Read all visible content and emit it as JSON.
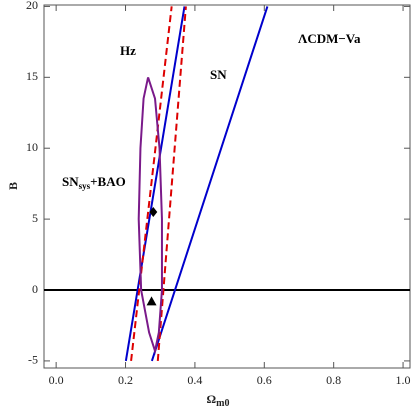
{
  "chart_data": {
    "type": "line",
    "xlabel": [
      "Ω",
      "m0"
    ],
    "ylabel": "B",
    "annotations": [
      {
        "text": "Hz"
      },
      {
        "text": "SN"
      },
      {
        "text": "ΛCDM−Va"
      },
      {
        "parts": [
          "SN",
          "sys",
          "+BAO"
        ]
      }
    ],
    "xlim": [
      -0.035,
      1.02
    ],
    "ylim": [
      -5.5,
      20.1
    ],
    "xticks": [
      {
        "value": 0,
        "label": "0.0"
      },
      {
        "value": 0.2,
        "label": "0.2"
      },
      {
        "value": 0.4,
        "label": "0.4"
      },
      {
        "value": 0.6,
        "label": "0.6"
      },
      {
        "value": 0.8,
        "label": "0.8"
      },
      {
        "value": 1,
        "label": "1.0"
      }
    ],
    "yticks": [
      -5,
      0,
      5,
      10,
      15,
      20
    ],
    "hline": {
      "value": 0,
      "color": "#000000"
    },
    "series": [
      {
        "color": "#0000cc",
        "style": "solid",
        "x": [
          0.201,
          0.37
        ],
        "values": [
          -5,
          20
        ]
      },
      {
        "color": "#0000cc",
        "style": "solid",
        "x": [
          0.276,
          0.609
        ],
        "values": [
          -5,
          20
        ]
      },
      {
        "color": "#dd0000",
        "style": "dashed",
        "x": [
          0.216,
          0.333
        ],
        "values": [
          -5,
          20
        ]
      },
      {
        "color": "#dd0000",
        "style": "dashed",
        "x": [
          0.293,
          0.374
        ],
        "values": [
          -5,
          20
        ]
      },
      {
        "color": "#7a1a8a",
        "style": "solid",
        "x": [
          0.265,
          0.285,
          0.298,
          0.305,
          0.305,
          0.296,
          0.285,
          0.268,
          0.245,
          0.238,
          0.243,
          0.252,
          0.265
        ],
        "values": [
          15,
          13.5,
          10,
          5,
          0,
          -3,
          -4.3,
          -3,
          0,
          5,
          10,
          13.5,
          15
        ]
      }
    ],
    "points": [
      {
        "marker": "diamond",
        "color": "#000000",
        "x": 0.28,
        "value": 5.5
      },
      {
        "marker": "triangle",
        "color": "#000000",
        "x": 0.275,
        "value": -0.8
      }
    ]
  }
}
